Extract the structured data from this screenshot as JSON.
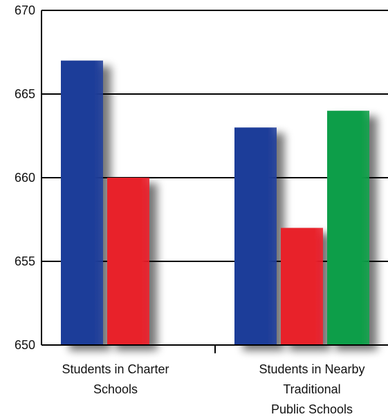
{
  "chart_data": {
    "type": "bar",
    "title": "",
    "xlabel": "",
    "ylabel": "",
    "ylim": [
      650,
      670
    ],
    "yticks": [
      650,
      655,
      660,
      665,
      670
    ],
    "grid": true,
    "legend": "none",
    "categories": [
      [
        "Students in Charter",
        "Schools"
      ],
      [
        "Students in Nearby",
        "Traditional",
        "Public Schools"
      ]
    ],
    "series": [
      {
        "color": "#1f3d99",
        "values": [
          667,
          663
        ]
      },
      {
        "color": "#e8202a",
        "values": [
          660,
          657
        ]
      },
      {
        "color": "#0f9e48",
        "values": [
          null,
          664
        ]
      }
    ]
  }
}
